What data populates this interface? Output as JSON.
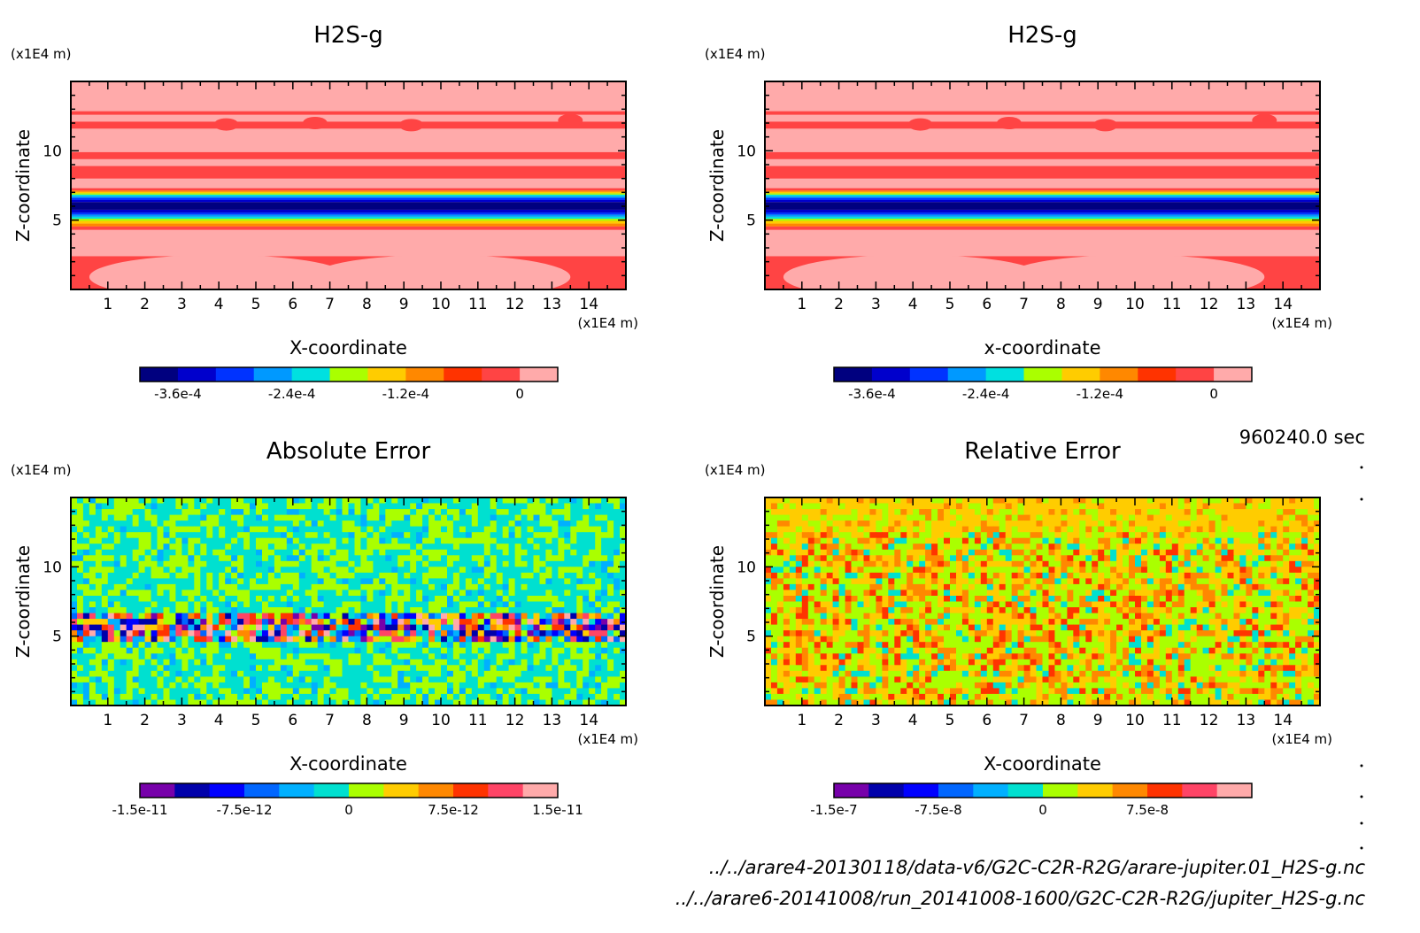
{
  "chart_data": [
    {
      "type": "heatmap",
      "title": "H2S-g",
      "xlabel": "X-coordinate",
      "ylabel": "Z-coordinate",
      "x_unit": "(x1E4 m)",
      "y_unit": "(x1E4 m)",
      "x_ticks": [
        "1",
        "2",
        "3",
        "4",
        "5",
        "6",
        "7",
        "8",
        "9",
        "10",
        "11",
        "12",
        "13",
        "14"
      ],
      "y_ticks": [
        "5",
        "10"
      ],
      "xlim": [
        0,
        15
      ],
      "ylim": [
        0,
        15
      ],
      "field": "layered",
      "colorbar": {
        "colors": [
          "#00007f",
          "#0000cc",
          "#0033ff",
          "#0099ff",
          "#00e0e0",
          "#aaff00",
          "#ffcc00",
          "#ff8800",
          "#ff3300",
          "#ff4444",
          "#ffaaaa"
        ],
        "tick_labels": [
          "-3.6e-4",
          "-2.4e-4",
          "-1.2e-4",
          "0"
        ]
      }
    },
    {
      "type": "heatmap",
      "title": "H2S-g",
      "xlabel": "x-coordinate",
      "ylabel": "Z-coordinate",
      "x_unit": "(x1E4 m)",
      "y_unit": "(x1E4 m)",
      "x_ticks": [
        "1",
        "2",
        "3",
        "4",
        "5",
        "6",
        "7",
        "8",
        "9",
        "10",
        "11",
        "12",
        "13",
        "14"
      ],
      "y_ticks": [
        "5",
        "10"
      ],
      "xlim": [
        0,
        15
      ],
      "ylim": [
        0,
        15
      ],
      "field": "layered",
      "colorbar": {
        "colors": [
          "#00007f",
          "#0000cc",
          "#0033ff",
          "#0099ff",
          "#00e0e0",
          "#aaff00",
          "#ffcc00",
          "#ff8800",
          "#ff3300",
          "#ff4444",
          "#ffaaaa"
        ],
        "tick_labels": [
          "-3.6e-4",
          "-2.4e-4",
          "-1.2e-4",
          "0"
        ]
      }
    },
    {
      "type": "heatmap",
      "title": "Absolute Error",
      "xlabel": "X-coordinate",
      "ylabel": "Z-coordinate",
      "x_unit": "(x1E4 m)",
      "y_unit": "(x1E4 m)",
      "x_ticks": [
        "1",
        "2",
        "3",
        "4",
        "5",
        "6",
        "7",
        "8",
        "9",
        "10",
        "11",
        "12",
        "13",
        "14"
      ],
      "y_ticks": [
        "5",
        "10"
      ],
      "xlim": [
        0,
        15
      ],
      "ylim": [
        0,
        15
      ],
      "field": "abs_noise",
      "colorbar": {
        "colors": [
          "#7700aa",
          "#0000aa",
          "#0000ff",
          "#0066ff",
          "#00b0ff",
          "#00e0d0",
          "#aaff00",
          "#ffcc00",
          "#ff8800",
          "#ff3300",
          "#ff4466",
          "#ffaaaa"
        ],
        "tick_labels": [
          "-1.5e-11",
          "-7.5e-12",
          "0",
          "7.5e-12",
          "1.5e-11"
        ]
      }
    },
    {
      "type": "heatmap",
      "title": "Relative Error",
      "xlabel": "X-coordinate",
      "ylabel": "Z-coordinate",
      "x_unit": "(x1E4 m)",
      "y_unit": "(x1E4 m)",
      "x_ticks": [
        "1",
        "2",
        "3",
        "4",
        "5",
        "6",
        "7",
        "8",
        "9",
        "10",
        "11",
        "12",
        "13",
        "14"
      ],
      "y_ticks": [
        "5",
        "10"
      ],
      "xlim": [
        0,
        15
      ],
      "ylim": [
        0,
        15
      ],
      "field": "rel_noise",
      "colorbar": {
        "colors": [
          "#7700aa",
          "#0000aa",
          "#0000ff",
          "#0066ff",
          "#00b0ff",
          "#00e0d0",
          "#aaff00",
          "#ffcc00",
          "#ff8800",
          "#ff3300",
          "#ff4466",
          "#ffaaaa"
        ],
        "tick_labels": [
          "-1.5e-7",
          "-7.5e-8",
          "0",
          "7.5e-8"
        ]
      }
    }
  ],
  "time_label": "960240.0 sec",
  "file_paths": [
    "../../arare4-20130118/data-v6/G2C-C2R-R2G/arare-jupiter.01_H2S-g.nc",
    "../../arare6-20141008/run_20141008-1600/G2C-C2R-R2G/jupiter_H2S-g.nc"
  ]
}
